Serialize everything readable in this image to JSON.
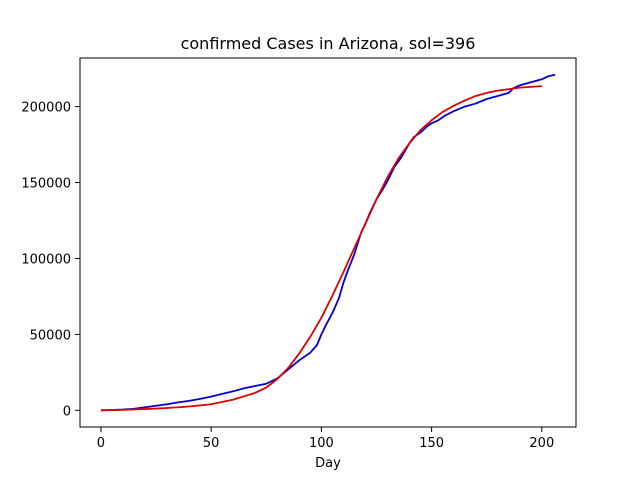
{
  "chart_data": {
    "type": "line",
    "title": "confirmed Cases in Arizona, sol=396",
    "xlabel": "Day",
    "ylabel": "",
    "xlim": [
      -9.5,
      215.5
    ],
    "ylim": [
      -11000,
      232000
    ],
    "x_ticks": [
      0,
      50,
      100,
      150,
      200
    ],
    "y_ticks": [
      0,
      50000,
      100000,
      150000,
      200000
    ],
    "grid": false,
    "series": [
      {
        "color": "#0000cc",
        "x": [
          0,
          5,
          10,
          15,
          20,
          25,
          30,
          35,
          40,
          45,
          50,
          55,
          60,
          65,
          70,
          75,
          80,
          85,
          90,
          95,
          98,
          100,
          102,
          105,
          108,
          110,
          112,
          115,
          118,
          120,
          122,
          125,
          128,
          130,
          133,
          136,
          138,
          140,
          142,
          145,
          148,
          150,
          153,
          156,
          160,
          165,
          170,
          175,
          180,
          185,
          187,
          190,
          195,
          200,
          203,
          206
        ],
        "y": [
          0,
          200,
          500,
          1000,
          2000,
          3000,
          4000,
          5200,
          6200,
          7500,
          9000,
          10800,
          12500,
          14500,
          16000,
          17500,
          21000,
          27000,
          33000,
          38000,
          43000,
          50000,
          56000,
          64000,
          74000,
          84000,
          92000,
          103000,
          117000,
          123000,
          130000,
          139000,
          146000,
          151000,
          160000,
          166000,
          171000,
          176000,
          180000,
          183000,
          187000,
          189000,
          191000,
          194000,
          197000,
          200000,
          202000,
          205000,
          207000,
          209000,
          212000,
          214000,
          216000,
          218000,
          220000,
          221000
        ]
      },
      {
        "color": "#dd0000",
        "x": [
          0,
          10,
          20,
          30,
          40,
          50,
          60,
          70,
          75,
          80,
          85,
          90,
          95,
          100,
          105,
          110,
          115,
          120,
          125,
          130,
          135,
          140,
          145,
          150,
          155,
          160,
          165,
          170,
          175,
          180,
          185,
          190,
          195,
          200
        ],
        "y": [
          0,
          300,
          800,
          1500,
          2500,
          4000,
          7000,
          11500,
          15000,
          20500,
          28000,
          37500,
          48500,
          61000,
          75500,
          91000,
          107000,
          123000,
          139000,
          153500,
          166000,
          176000,
          184500,
          191000,
          196500,
          200500,
          204000,
          207000,
          209000,
          210500,
          211500,
          212500,
          213000,
          213500
        ]
      }
    ]
  }
}
